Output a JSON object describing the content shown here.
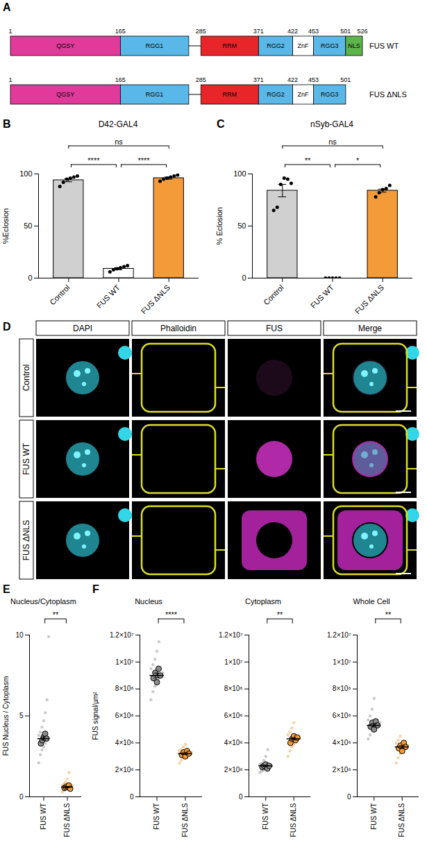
{
  "diagram": {
    "letter": "A",
    "proteins": [
      {
        "name": "FUS WT",
        "length": 526,
        "positions": [
          1,
          165,
          285,
          371,
          422,
          453,
          501,
          526
        ],
        "domains": [
          {
            "name": "QGSY",
            "start": 1,
            "end": 165,
            "color": "#e23a9b"
          },
          {
            "name": "RGG1",
            "start": 165,
            "end": 267,
            "color": "#5ab8e8"
          },
          {
            "name": "RRM",
            "start": 285,
            "end": 371,
            "color": "#e8262a"
          },
          {
            "name": "RGG2",
            "start": 371,
            "end": 422,
            "color": "#5ab8e8"
          },
          {
            "name": "ZnF",
            "start": 422,
            "end": 453,
            "color": "#ffffff"
          },
          {
            "name": "RGG3",
            "start": 453,
            "end": 501,
            "color": "#5ab8e8"
          },
          {
            "name": "NLS",
            "start": 501,
            "end": 526,
            "color": "#5db44a"
          }
        ]
      },
      {
        "name": "FUS ΔNLS",
        "length": 501,
        "positions": [
          1,
          165,
          285,
          371,
          422,
          453,
          501
        ],
        "domains": [
          {
            "name": "QGSY",
            "start": 1,
            "end": 165,
            "color": "#e23a9b"
          },
          {
            "name": "RGG1",
            "start": 165,
            "end": 267,
            "color": "#5ab8e8"
          },
          {
            "name": "RRM",
            "start": 285,
            "end": 371,
            "color": "#e8262a"
          },
          {
            "name": "RGG2",
            "start": 371,
            "end": 422,
            "color": "#5ab8e8"
          },
          {
            "name": "ZnF",
            "start": 422,
            "end": 453,
            "color": "#ffffff"
          },
          {
            "name": "RGG3",
            "start": 453,
            "end": 501,
            "color": "#5ab8e8"
          }
        ]
      }
    ]
  },
  "images": {
    "letter": "D",
    "columns": [
      "DAPI",
      "Phalloidin",
      "FUS",
      "Merge"
    ],
    "rows": [
      "Control",
      "FUS WT",
      "FUS ΔNLS"
    ]
  },
  "chart_data": [
    {
      "letter": "B",
      "type": "bar",
      "title": "D42-GAL4",
      "y_label": "%Eclosion",
      "categories": [
        "Control",
        "FUS WT",
        "FUS ΔNLS"
      ],
      "values": [
        94,
        9,
        96
      ],
      "errors": [
        1.5,
        1,
        1
      ],
      "points": [
        [
          88,
          92,
          95,
          96,
          97,
          98
        ],
        [
          6,
          8,
          9,
          10,
          11,
          12
        ],
        [
          93,
          95,
          96,
          97,
          98,
          99
        ]
      ],
      "colors": [
        "#d0d0d0",
        "#ffffff",
        "#f29b38"
      ],
      "ylim": [
        0,
        100
      ],
      "yticks": [
        0,
        50,
        100
      ],
      "significance": [
        {
          "from": 0,
          "to": 1,
          "label": "****"
        },
        {
          "from": 1,
          "to": 2,
          "label": "****"
        },
        {
          "from": 0,
          "to": 2,
          "label": "ns"
        }
      ]
    },
    {
      "letter": "C",
      "type": "bar",
      "title": "nSyb-GAL4",
      "y_label": "% Eclosion",
      "categories": [
        "Control",
        "FUS WT",
        "FUS ΔNLS"
      ],
      "values": [
        84,
        0,
        84
      ],
      "errors": [
        6,
        0,
        1.5
      ],
      "points": [
        [
          65,
          68,
          90,
          96,
          95,
          91
        ],
        [
          0,
          0,
          0,
          0,
          0
        ],
        [
          78,
          82,
          85,
          86,
          89
        ]
      ],
      "colors": [
        "#d0d0d0",
        "#ffffff",
        "#f29b38"
      ],
      "ylim": [
        0,
        100
      ],
      "yticks": [
        0,
        50,
        100
      ],
      "significance": [
        {
          "from": 0,
          "to": 1,
          "label": "**"
        },
        {
          "from": 1,
          "to": 2,
          "label": "*"
        },
        {
          "from": 0,
          "to": 2,
          "label": "ns"
        }
      ]
    },
    {
      "letter": "E",
      "type": "dot",
      "title": "Nucleus/Cytoplasm",
      "y_label": "FUS Nucleus / Cytoplasm",
      "categories": [
        "FUS WT",
        "FUS ΔNLS"
      ],
      "values": [
        3.6,
        0.6
      ],
      "errors": [
        0.1,
        0.04
      ],
      "points": [
        [
          2.1,
          2.6,
          2.9,
          3.1,
          3.3,
          3.5,
          3.6,
          3.8,
          4.0,
          4.3,
          4.7,
          5.2,
          6.0,
          9.9
        ],
        [
          0.3,
          0.4,
          0.5,
          0.5,
          0.6,
          0.6,
          0.7,
          0.7,
          0.8,
          0.9,
          1.1,
          1.5
        ]
      ],
      "replicates": [
        [
          3.3,
          3.5,
          3.7,
          3.9,
          3.6
        ],
        [
          0.55,
          0.6,
          0.65,
          0.7,
          0.5
        ]
      ],
      "colors": [
        "#8c8c8c",
        "#f29b38"
      ],
      "ylim": [
        0,
        10
      ],
      "yticks": [
        0,
        5,
        10
      ],
      "significance": [
        {
          "from": 0,
          "to": 1,
          "label": "**"
        }
      ]
    },
    {
      "letter": "F",
      "type": "dot",
      "title": "Nucleus",
      "y_label": "FUS signal/µm²",
      "categories": [
        "FUS WT",
        "FUS ΔNLS"
      ],
      "values": [
        9000000,
        3200000
      ],
      "errors": [
        180000,
        70000
      ],
      "points": [
        [
          7200000,
          7800000,
          8200000,
          8500000,
          8800000,
          9000000,
          9200000,
          9500000,
          9800000,
          10200000,
          10800000,
          11500000
        ],
        [
          2500000,
          2700000,
          2900000,
          3000000,
          3100000,
          3200000,
          3300000,
          3400000,
          3500000,
          3700000,
          3900000
        ]
      ],
      "replicates": [
        [
          8800000,
          9200000,
          8500000,
          9500000,
          9000000
        ],
        [
          3100000,
          3300000,
          3000000,
          3400000,
          3200000
        ]
      ],
      "colors": [
        "#8c8c8c",
        "#f29b38"
      ],
      "ylim": [
        0,
        12000000
      ],
      "yticks": [
        0,
        {
          "value": 2000000,
          "label": "2×10⁶"
        },
        {
          "value": 4000000,
          "label": "4×10⁶"
        },
        {
          "value": 6000000,
          "label": "6×10⁶"
        },
        {
          "value": 8000000,
          "label": "8×10⁶"
        },
        {
          "value": 10000000,
          "label": "1×10⁷"
        },
        {
          "value": 12000000,
          "label": "1.2×10⁷"
        }
      ],
      "significance": [
        {
          "from": 0,
          "to": 1,
          "label": "****"
        }
      ]
    },
    {
      "type": "dot",
      "title": "Cytoplasm",
      "categories": [
        "FUS WT",
        "FUS ΔNLS"
      ],
      "values": [
        2300000,
        4300000
      ],
      "errors": [
        50000,
        90000
      ],
      "points": [
        [
          1800000,
          1900000,
          2000000,
          2100000,
          2200000,
          2200000,
          2300000,
          2400000,
          2500000,
          2700000,
          3000000,
          3500000
        ],
        [
          3000000,
          3400000,
          3700000,
          3900000,
          4100000,
          4200000,
          4400000,
          4600000,
          4800000,
          5100000,
          5500000
        ]
      ],
      "replicates": [
        [
          2200000,
          2300000,
          2400000,
          2100000,
          2300000
        ],
        [
          4000000,
          4300000,
          4500000,
          4200000,
          4400000
        ]
      ],
      "colors": [
        "#8c8c8c",
        "#f29b38"
      ],
      "ylim": [
        0,
        12000000
      ],
      "yticks": [
        0,
        {
          "value": 2000000,
          "label": "2×10⁶"
        },
        {
          "value": 4000000,
          "label": "4×10⁶"
        },
        {
          "value": 6000000,
          "label": "6×10⁶"
        },
        {
          "value": 8000000,
          "label": "8×10⁶"
        },
        {
          "value": 10000000,
          "label": "1×10⁷"
        },
        {
          "value": 12000000,
          "label": "1.2×10⁷"
        }
      ],
      "significance": [
        {
          "from": 0,
          "to": 1,
          "label": "**"
        }
      ]
    },
    {
      "type": "dot",
      "title": "Whole Cell",
      "categories": [
        "FUS WT",
        "FUS ΔNLS"
      ],
      "values": [
        5300000,
        3700000
      ],
      "errors": [
        110000,
        100000
      ],
      "points": [
        [
          4300000,
          4600000,
          4900000,
          5100000,
          5200000,
          5300000,
          5500000,
          5700000,
          6000000,
          6500000,
          7300000
        ],
        [
          2500000,
          2900000,
          3200000,
          3400000,
          3600000,
          3700000,
          3800000,
          4000000,
          4200000,
          4500000
        ]
      ],
      "replicates": [
        [
          5200000,
          5500000,
          5000000,
          5600000,
          5300000
        ],
        [
          3600000,
          3800000,
          3400000,
          4000000,
          3700000
        ]
      ],
      "colors": [
        "#8c8c8c",
        "#f29b38"
      ],
      "ylim": [
        0,
        12000000
      ],
      "yticks": [
        0,
        {
          "value": 2000000,
          "label": "2×10⁶"
        },
        {
          "value": 4000000,
          "label": "4×10⁶"
        },
        {
          "value": 6000000,
          "label": "6×10⁶"
        },
        {
          "value": 8000000,
          "label": "8×10⁶"
        },
        {
          "value": 10000000,
          "label": "1×10⁷"
        },
        {
          "value": 12000000,
          "label": "1.2×10⁷"
        }
      ],
      "significance": [
        {
          "from": 0,
          "to": 1,
          "label": "**"
        }
      ]
    }
  ]
}
